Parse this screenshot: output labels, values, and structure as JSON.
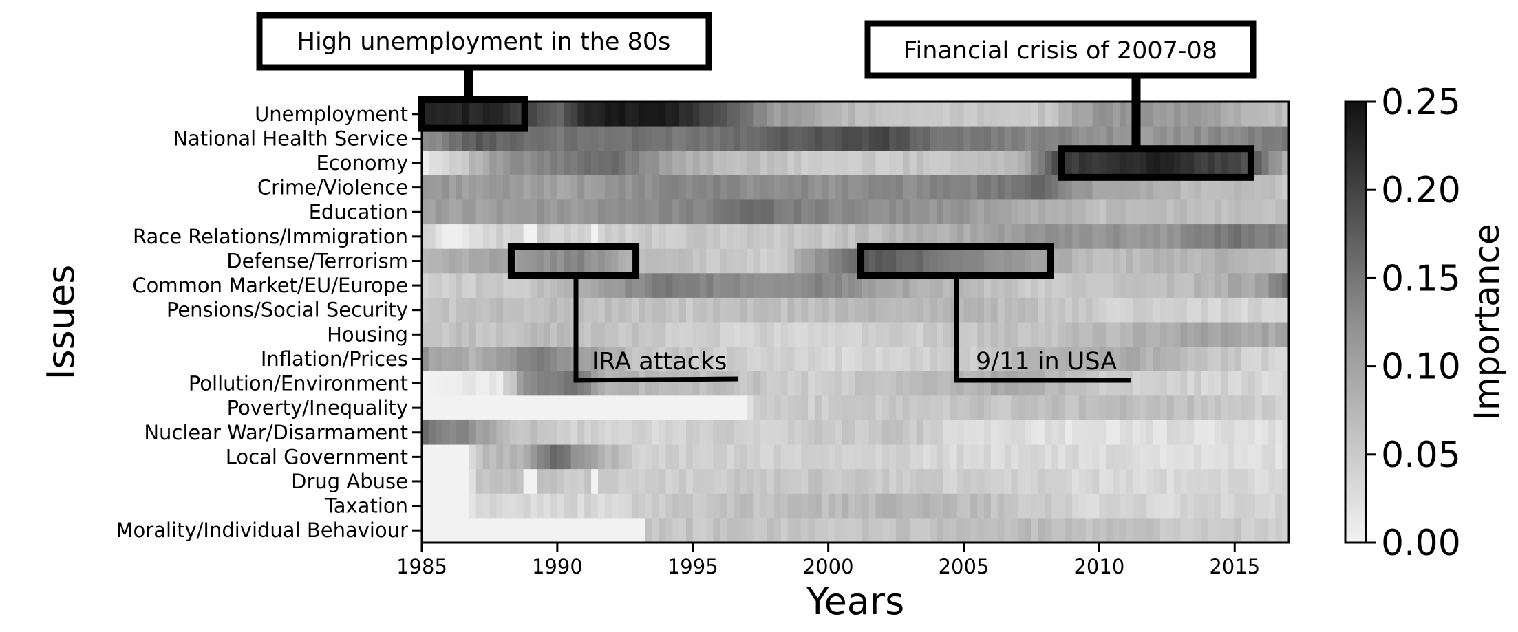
{
  "chart_data": {
    "type": "heatmap",
    "xlabel": "Years",
    "ylabel": "Issues",
    "xlim": [
      1985,
      2017
    ],
    "x_ticks": [
      1985,
      1990,
      1995,
      2000,
      2005,
      2010,
      2015
    ],
    "colorbar": {
      "label": "Importance",
      "min": 0.0,
      "max": 0.25,
      "ticks": [
        "0.00",
        "0.05",
        "0.10",
        "0.15",
        "0.20",
        "0.25"
      ],
      "colormap": "greys (light = low, dark = high)"
    },
    "issues": [
      "Unemployment",
      "National Health Service",
      "Economy",
      "Crime/Violence",
      "Education",
      "Race Relations/Immigration",
      "Defense/Terrorism",
      "Common Market/EU/Europe",
      "Pensions/Social Security",
      "Housing",
      "Inflation/Prices",
      "Pollution/Environment",
      "Poverty/Inequality",
      "Nuclear War/Disarmament",
      "Local Government",
      "Drug Abuse",
      "Taxation",
      "Morality/Individual Behaviour"
    ],
    "importance_profile": [
      {
        "issue": "Unemployment",
        "points": [
          [
            1985,
            0.24
          ],
          [
            1988,
            0.22
          ],
          [
            1990,
            0.15
          ],
          [
            1991,
            0.23
          ],
          [
            1994,
            0.24
          ],
          [
            1996,
            0.18
          ],
          [
            1998,
            0.1
          ],
          [
            2002,
            0.05
          ],
          [
            2008,
            0.05
          ],
          [
            2010,
            0.1
          ],
          [
            2013,
            0.1
          ],
          [
            2017,
            0.06
          ]
        ]
      },
      {
        "issue": "National Health Service",
        "points": [
          [
            1985,
            0.1
          ],
          [
            1987,
            0.17
          ],
          [
            1990,
            0.14
          ],
          [
            1995,
            0.14
          ],
          [
            1999,
            0.17
          ],
          [
            2002,
            0.19
          ],
          [
            2004,
            0.14
          ],
          [
            2008,
            0.12
          ],
          [
            2012,
            0.1
          ],
          [
            2017,
            0.13
          ]
        ]
      },
      {
        "issue": "Economy",
        "points": [
          [
            1985,
            0.01
          ],
          [
            1986.5,
            0.05
          ],
          [
            1988,
            0.1
          ],
          [
            1992,
            0.15
          ],
          [
            1995,
            0.07
          ],
          [
            2000,
            0.04
          ],
          [
            2007,
            0.06
          ],
          [
            2008.5,
            0.2
          ],
          [
            2012,
            0.23
          ],
          [
            2015.5,
            0.18
          ],
          [
            2017,
            0.07
          ]
        ]
      },
      {
        "issue": "Crime/Violence",
        "points": [
          [
            1985,
            0.1
          ],
          [
            1990,
            0.09
          ],
          [
            1995,
            0.12
          ],
          [
            2000,
            0.11
          ],
          [
            2005,
            0.12
          ],
          [
            2008,
            0.15
          ],
          [
            2010,
            0.08
          ],
          [
            2017,
            0.05
          ]
        ]
      },
      {
        "issue": "Education",
        "points": [
          [
            1985,
            0.09
          ],
          [
            1990,
            0.1
          ],
          [
            1995,
            0.12
          ],
          [
            1997,
            0.15
          ],
          [
            2000,
            0.12
          ],
          [
            2005,
            0.1
          ],
          [
            2010,
            0.06
          ],
          [
            2017,
            0.06
          ]
        ]
      },
      {
        "issue": "Race Relations/Immigration",
        "points": [
          [
            1985,
            0.04
          ],
          [
            1986,
            0.0
          ],
          [
            1987,
            0.03
          ],
          [
            1990,
            0.04
          ],
          [
            2000,
            0.05
          ],
          [
            2005,
            0.08
          ],
          [
            2008,
            0.11
          ],
          [
            2012,
            0.1
          ],
          [
            2015,
            0.14
          ],
          [
            2017,
            0.12
          ]
        ]
      },
      {
        "issue": "Defense/Terrorism",
        "points": [
          [
            1985,
            0.06
          ],
          [
            1988,
            0.09
          ],
          [
            1991,
            0.12
          ],
          [
            1993,
            0.06
          ],
          [
            1998,
            0.04
          ],
          [
            2001.5,
            0.17
          ],
          [
            2004,
            0.14
          ],
          [
            2007,
            0.1
          ],
          [
            2010,
            0.06
          ],
          [
            2015,
            0.07
          ],
          [
            2017,
            0.05
          ]
        ]
      },
      {
        "issue": "Common Market/EU/Europe",
        "points": [
          [
            1985,
            0.04
          ],
          [
            1989,
            0.05
          ],
          [
            1992,
            0.1
          ],
          [
            1994,
            0.13
          ],
          [
            1997,
            0.11
          ],
          [
            2000,
            0.12
          ],
          [
            2003,
            0.08
          ],
          [
            2008,
            0.04
          ],
          [
            2013,
            0.06
          ],
          [
            2016,
            0.09
          ],
          [
            2017,
            0.14
          ]
        ]
      },
      {
        "issue": "Pensions/Social Security",
        "points": [
          [
            1985,
            0.05
          ],
          [
            1990,
            0.06
          ],
          [
            1995,
            0.05
          ],
          [
            2000,
            0.06
          ],
          [
            2005,
            0.07
          ],
          [
            2010,
            0.04
          ],
          [
            2017,
            0.03
          ]
        ]
      },
      {
        "issue": "Housing",
        "points": [
          [
            1985,
            0.05
          ],
          [
            1990,
            0.06
          ],
          [
            1995,
            0.04
          ],
          [
            2000,
            0.03
          ],
          [
            2005,
            0.05
          ],
          [
            2010,
            0.06
          ],
          [
            2014,
            0.09
          ],
          [
            2017,
            0.08
          ]
        ]
      },
      {
        "issue": "Inflation/Prices",
        "points": [
          [
            1985,
            0.1
          ],
          [
            1987,
            0.07
          ],
          [
            1989,
            0.13
          ],
          [
            1991,
            0.1
          ],
          [
            1993,
            0.05
          ],
          [
            2000,
            0.03
          ],
          [
            2005,
            0.04
          ],
          [
            2008,
            0.07
          ],
          [
            2011,
            0.08
          ],
          [
            2013,
            0.06
          ],
          [
            2017,
            0.03
          ]
        ]
      },
      {
        "issue": "Pollution/Environment",
        "points": [
          [
            1985,
            0.0
          ],
          [
            1987.9,
            0.01
          ],
          [
            1989,
            0.12
          ],
          [
            1990.5,
            0.14
          ],
          [
            1992,
            0.07
          ],
          [
            2000,
            0.04
          ],
          [
            2007,
            0.08
          ],
          [
            2010,
            0.04
          ],
          [
            2017,
            0.03
          ]
        ]
      },
      {
        "issue": "Poverty/Inequality",
        "points": [
          [
            1985,
            0.0
          ],
          [
            1997.1,
            0.0
          ],
          [
            1997.2,
            0.04
          ],
          [
            2005,
            0.05
          ],
          [
            2012,
            0.06
          ],
          [
            2017,
            0.04
          ]
        ]
      },
      {
        "issue": "Nuclear War/Disarmament",
        "points": [
          [
            1985,
            0.14
          ],
          [
            1986.5,
            0.12
          ],
          [
            1988,
            0.06
          ],
          [
            1992,
            0.03
          ],
          [
            2003,
            0.05
          ],
          [
            2005,
            0.02
          ],
          [
            2017,
            0.02
          ]
        ]
      },
      {
        "issue": "Local Government",
        "points": [
          [
            1985,
            0.0
          ],
          [
            1986.8,
            0.0
          ],
          [
            1987,
            0.05
          ],
          [
            1989,
            0.08
          ],
          [
            1990,
            0.16
          ],
          [
            1991,
            0.09
          ],
          [
            1993,
            0.04
          ],
          [
            2017,
            0.02
          ]
        ]
      },
      {
        "issue": "Drug Abuse",
        "points": [
          [
            1985,
            0.0
          ],
          [
            1986.8,
            0.0
          ],
          [
            1987,
            0.05
          ],
          [
            1995,
            0.04
          ],
          [
            2000,
            0.05
          ],
          [
            2005,
            0.04
          ],
          [
            2010,
            0.03
          ],
          [
            2017,
            0.03
          ]
        ]
      },
      {
        "issue": "Taxation",
        "points": [
          [
            1985,
            0.0
          ],
          [
            1986.8,
            0.0
          ],
          [
            1987,
            0.03
          ],
          [
            1992,
            0.03
          ],
          [
            1995,
            0.05
          ],
          [
            2000,
            0.06
          ],
          [
            2004,
            0.07
          ],
          [
            2007,
            0.05
          ],
          [
            2010,
            0.03
          ],
          [
            2017,
            0.03
          ]
        ]
      },
      {
        "issue": "Morality/Individual Behaviour",
        "points": [
          [
            1985,
            0.0
          ],
          [
            1993.2,
            0.0
          ],
          [
            1993.3,
            0.05
          ],
          [
            2000,
            0.05
          ],
          [
            2008,
            0.06
          ],
          [
            2012,
            0.05
          ],
          [
            2017,
            0.04
          ]
        ]
      }
    ],
    "gaps": [
      {
        "issue": "Race Relations/Immigration",
        "from": 1988.8,
        "to": 1989.3
      },
      {
        "issue": "Race Relations/Immigration",
        "from": 1991.2,
        "to": 1991.6
      },
      {
        "issue": "Drug Abuse",
        "from": 1988.8,
        "to": 1989.3
      },
      {
        "issue": "Drug Abuse",
        "from": 1991.2,
        "to": 1991.6
      }
    ],
    "annotations": [
      {
        "id": "unemployment-80s",
        "text": "High unemployment in the 80s",
        "region": {
          "x": [
            1985,
            1988.8
          ],
          "issues": [
            "Unemployment"
          ]
        },
        "label_side": "above-left"
      },
      {
        "id": "financial-crisis",
        "text": "Financial crisis of 2007-08",
        "region": {
          "x": [
            2008.6,
            2015.6
          ],
          "issues": [
            "Economy"
          ]
        },
        "label_side": "above-right"
      },
      {
        "id": "ira-attacks",
        "text": "IRA attacks",
        "region": {
          "x": [
            1988.3,
            1992.9
          ],
          "issues": [
            "Defense/Terrorism"
          ]
        },
        "label_side": "below"
      },
      {
        "id": "nine-eleven",
        "text": "9/11 in USA",
        "region": {
          "x": [
            2001.2,
            2008.2
          ],
          "issues": [
            "Defense/Terrorism"
          ]
        },
        "label_side": "below"
      }
    ]
  }
}
